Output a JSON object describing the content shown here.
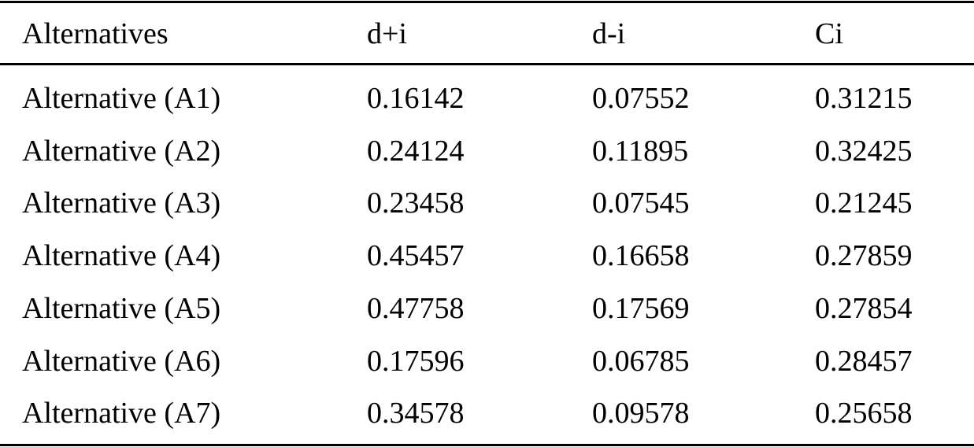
{
  "table": {
    "header": [
      "Alternatives",
      "d+i",
      "d-i",
      "Ci"
    ],
    "rows": [
      [
        "Alternative (A1)",
        "0.16142",
        "0.07552",
        "0.31215"
      ],
      [
        "Alternative (A2)",
        "0.24124",
        "0.11895",
        "0.32425"
      ],
      [
        "Alternative (A3)",
        "0.23458",
        "0.07545",
        "0.21245"
      ],
      [
        "Alternative (A4)",
        "0.45457",
        "0.16658",
        "0.27859"
      ],
      [
        "Alternative (A5)",
        "0.47758",
        "0.17569",
        "0.27854"
      ],
      [
        "Alternative (A6)",
        "0.17596",
        "0.06785",
        "0.28457"
      ],
      [
        "Alternative (A7)",
        "0.34578",
        "0.09578",
        "0.25658"
      ]
    ]
  }
}
